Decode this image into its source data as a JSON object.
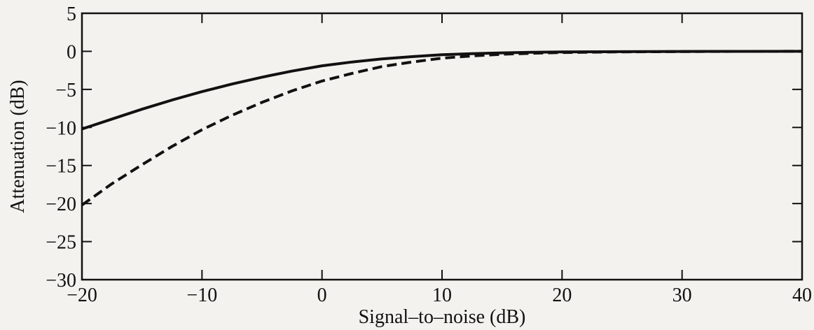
{
  "chart_data": {
    "type": "line",
    "title": "",
    "xlabel": "Signal–to–noise (dB)",
    "ylabel": "Attenuation (dB)",
    "xlim": [
      -20,
      40
    ],
    "ylim": [
      -30,
      5
    ],
    "xticks": [
      -20,
      -10,
      0,
      10,
      20,
      30,
      40
    ],
    "yticks": [
      5,
      0,
      -5,
      -10,
      -15,
      -20,
      -25,
      -30
    ],
    "xtick_labels": [
      "−20",
      "−10",
      "0",
      "10",
      "20",
      "30",
      "40"
    ],
    "ytick_labels": [
      "5",
      "0",
      "−5",
      "−10",
      "−15",
      "−20",
      "−25",
      "−30"
    ],
    "grid": false,
    "legend": "none",
    "series": [
      {
        "style": "solid",
        "x": [
          -20,
          -17.5,
          -15,
          -12.5,
          -10,
          -7.5,
          -5,
          -2.5,
          0,
          2.5,
          5,
          7.5,
          10,
          12.5,
          15,
          17.5,
          20,
          25,
          30,
          35,
          40
        ],
        "y": [
          -10.2,
          -8.9,
          -7.6,
          -6.4,
          -5.3,
          -4.3,
          -3.4,
          -2.6,
          -1.9,
          -1.4,
          -1.0,
          -0.7,
          -0.45,
          -0.3,
          -0.2,
          -0.13,
          -0.08,
          -0.04,
          -0.02,
          -0.01,
          0
        ]
      },
      {
        "style": "dashed",
        "x": [
          -20,
          -17.5,
          -15,
          -12.5,
          -10,
          -7.5,
          -5,
          -2.5,
          0,
          2.5,
          5,
          7.5,
          10,
          12.5,
          15,
          17.5,
          20,
          25,
          30,
          35,
          40
        ],
        "y": [
          -20.2,
          -17.4,
          -14.9,
          -12.5,
          -10.3,
          -8.4,
          -6.7,
          -5.2,
          -3.9,
          -2.9,
          -2.0,
          -1.4,
          -0.9,
          -0.6,
          -0.38,
          -0.25,
          -0.15,
          -0.07,
          -0.03,
          -0.01,
          0
        ]
      }
    ]
  }
}
